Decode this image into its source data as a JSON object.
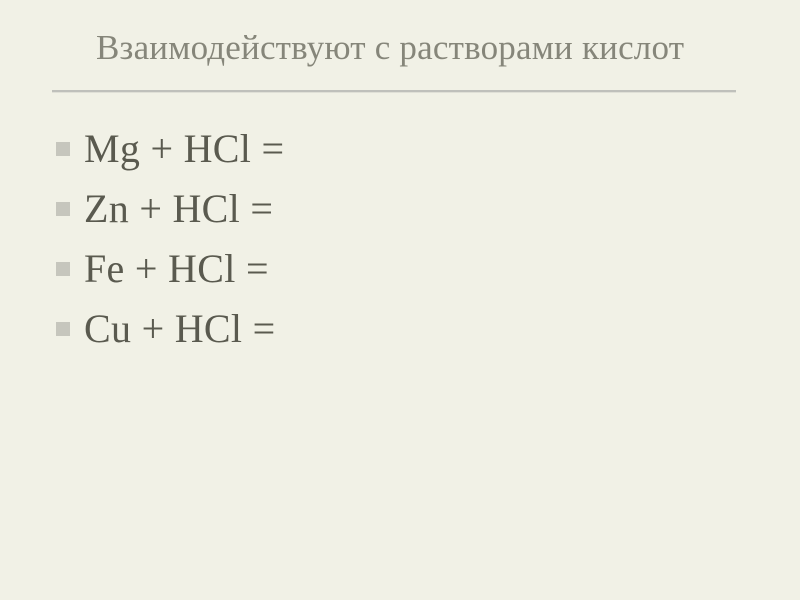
{
  "slide": {
    "title": "Взаимодействуют с растворами кислот",
    "title_color": "#86867a",
    "title_fontsize": 35,
    "background_color": "#f1f1e6",
    "divider_color_top": "#bfc0bb",
    "divider_color_bottom": "#e0e0d7",
    "bullet_color": "#c6c6bd",
    "bullet_size": 14,
    "equation_color": "#5a5a4f",
    "equation_fontsize": 40,
    "equations": [
      "Mg + HCl =",
      "Zn +  HCl =",
      "Fe +  HCl =",
      "Cu + HCl ="
    ]
  }
}
